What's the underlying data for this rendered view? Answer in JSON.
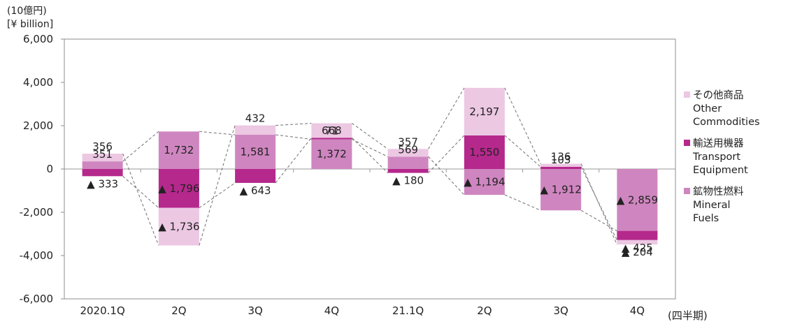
{
  "unit_jp": "(10億円)",
  "unit_en": "[¥ billion]",
  "x_unit": "(四半期)",
  "chart_data": {
    "type": "bar",
    "stacked": true,
    "categories": [
      "2020.1Q",
      "2Q",
      "3Q",
      "4Q",
      "21.1Q",
      "2Q",
      "3Q",
      "4Q"
    ],
    "ylim": [
      -6000,
      6000
    ],
    "yticks": [
      6000,
      4000,
      2000,
      0,
      -2000,
      -4000,
      -6000
    ],
    "ytick_labels": [
      "6,000",
      "4,000",
      "2,000",
      "0",
      "-2,000",
      "-4,000",
      "-6,000"
    ],
    "grid": false,
    "legend_position": "right",
    "negative_marker": "▲",
    "series": [
      {
        "key": "mineral",
        "jp": "鉱物性燃料",
        "en1": "Mineral",
        "en2": "Fuels",
        "color": "#cf86c0",
        "values": [
          351,
          1732,
          1581,
          1372,
          569,
          -1194,
          -1912,
          -2859
        ],
        "labels": [
          "351",
          "1,732",
          "1,581",
          "1,372",
          "569",
          "▲ 1,194",
          "▲ 1,912",
          "▲ 2,859"
        ]
      },
      {
        "key": "transport",
        "jp": "輸送用機器",
        "en1": "Transport",
        "en2": "Equipment",
        "color": "#b5288c",
        "values": [
          -333,
          -1796,
          -643,
          71,
          -180,
          1550,
          103,
          -425
        ],
        "labels": [
          "▲ 333",
          "▲ 1,796",
          "▲ 643",
          "71",
          "▲ 180",
          "1,550",
          "103",
          "▲ 425"
        ]
      },
      {
        "key": "other",
        "jp": "その他商品",
        "en1": "Other",
        "en2": "Commodities",
        "color": "#ecc8e3",
        "values": [
          356,
          -1736,
          432,
          668,
          357,
          2197,
          136,
          -204
        ],
        "labels": [
          "356",
          "▲ 1,736",
          "432",
          "668",
          "357",
          "2,197",
          "136",
          "▲ 204"
        ]
      }
    ]
  }
}
